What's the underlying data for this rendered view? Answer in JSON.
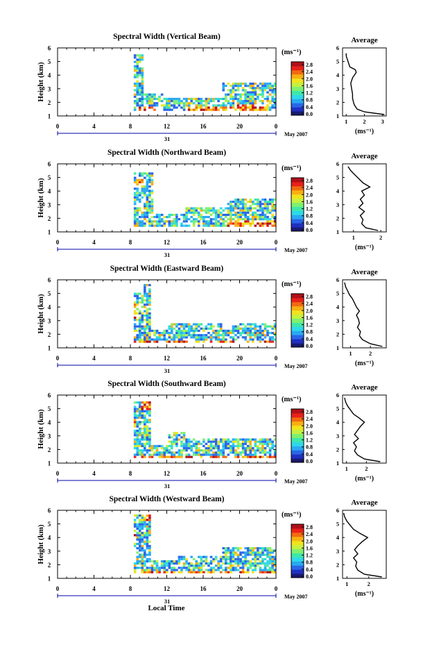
{
  "colors": {
    "text": "#000000",
    "axis": "#000000",
    "date_axis": "#0000aa",
    "background": "#ffffff"
  },
  "colormap": [
    "#1a1a6e",
    "#2030c0",
    "#2a66e8",
    "#29a9f2",
    "#2fd9e8",
    "#3fe7a8",
    "#7ff070",
    "#c6f040",
    "#f2e21e",
    "#f7b012",
    "#f26a10",
    "#e8201a",
    "#b0101a"
  ],
  "common": {
    "height_label": "Height (km)",
    "unit_label": "(ms⁻¹)",
    "average_title": "Average",
    "average_xlabel": "(ms⁻¹)",
    "date_label": "May 2007",
    "day_label": "31",
    "bottom_xlabel": "Local Time"
  },
  "chart_data": [
    {
      "type": "heatmap",
      "title": "Spectral Width (Vertical Beam)",
      "ylabel": "Height (km)",
      "ylim": [
        1,
        6
      ],
      "y_ticks": [
        1,
        2,
        3,
        4,
        5,
        6
      ],
      "x_ticks": [
        "0",
        "4",
        "8",
        "12",
        "16",
        "20",
        "0"
      ],
      "xlim": [
        0,
        24
      ],
      "colorbar": {
        "label": "(ms⁻¹)",
        "ticks": [
          "2.8",
          "2.4",
          "2.0",
          "1.6",
          "1.2",
          "0.8",
          "0.4",
          "0.0"
        ],
        "range": [
          0,
          2.8
        ]
      },
      "profile": {
        "title": "Average",
        "xlabel": "(ms⁻¹)",
        "xlim": [
          0.8,
          3.2
        ],
        "x_ticks": [
          "1",
          "2",
          "3"
        ],
        "ylim": [
          1,
          6
        ],
        "y_ticks": [
          1,
          2,
          3,
          4,
          5,
          6
        ],
        "heights": [
          1.1,
          1.3,
          1.5,
          1.8,
          2.0,
          2.3,
          2.6,
          3.0,
          3.4,
          3.8,
          4.2,
          4.4,
          4.6,
          4.8,
          5.0,
          5.2,
          5.4,
          5.6
        ],
        "values": [
          3.1,
          2.0,
          1.6,
          1.45,
          1.4,
          1.35,
          1.35,
          1.3,
          1.25,
          1.35,
          1.55,
          1.5,
          1.2,
          1.15,
          1.1,
          1.05,
          1.0,
          1.0
        ]
      },
      "cover": [
        [
          8.2,
          9.3,
          1.3,
          5.4
        ],
        [
          8.3,
          11.5,
          1.3,
          2.5
        ],
        [
          11.5,
          24,
          1.3,
          2.3
        ],
        [
          18,
          24,
          2.3,
          3.4
        ],
        [
          8.1,
          8.4,
          1.5,
          3.2
        ]
      ],
      "hot": [
        [
          14,
          19.5,
          1.1,
          1.6
        ],
        [
          8.8,
          11,
          1.3,
          1.6
        ],
        [
          19.5,
          23,
          1.2,
          1.7
        ]
      ]
    },
    {
      "type": "heatmap",
      "title": "Spectral Width (Northward Beam)",
      "ylabel": "Height (km)",
      "ylim": [
        1,
        6
      ],
      "y_ticks": [
        1,
        2,
        3,
        4,
        5,
        6
      ],
      "x_ticks": [
        "0",
        "4",
        "8",
        "12",
        "16",
        "20",
        "0"
      ],
      "xlim": [
        0,
        24
      ],
      "colorbar": {
        "label": "(ms⁻¹)",
        "ticks": [
          "2.8",
          "2.4",
          "2.0",
          "1.6",
          "1.2",
          "0.8",
          "0.4",
          "0.0"
        ],
        "range": [
          0,
          2.8
        ]
      },
      "profile": {
        "title": "Average",
        "xlabel": "(ms⁻¹)",
        "xlim": [
          0.6,
          2.2
        ],
        "x_ticks": [
          "1",
          "2"
        ],
        "ylim": [
          1,
          6
        ],
        "y_ticks": [
          1,
          2,
          3,
          4,
          5,
          6
        ],
        "heights": [
          1.1,
          1.3,
          1.6,
          1.9,
          2.2,
          2.5,
          2.8,
          3.1,
          3.4,
          3.7,
          4.0,
          4.3,
          4.6,
          4.9,
          5.2,
          5.5,
          5.8
        ],
        "values": [
          1.9,
          1.45,
          1.3,
          1.35,
          1.25,
          1.4,
          1.2,
          1.35,
          1.25,
          1.4,
          1.3,
          1.6,
          1.35,
          1.2,
          1.05,
          0.9,
          0.8
        ]
      },
      "cover": [
        [
          8.1,
          10.5,
          1.3,
          5.3
        ],
        [
          10.5,
          24,
          1.3,
          2.2
        ],
        [
          14,
          19,
          1.4,
          2.8
        ],
        [
          18.5,
          24,
          1.4,
          3.3
        ],
        [
          9,
          10,
          3.5,
          4.8
        ]
      ],
      "hot": [
        [
          18.5,
          24,
          1.3,
          1.8
        ],
        [
          8.5,
          9.5,
          4.3,
          4.8
        ]
      ]
    },
    {
      "type": "heatmap",
      "title": "Spectral Width (Eastward Beam)",
      "ylabel": "Height (km)",
      "ylim": [
        1,
        6
      ],
      "y_ticks": [
        1,
        2,
        3,
        4,
        5,
        6
      ],
      "x_ticks": [
        "0",
        "4",
        "8",
        "12",
        "16",
        "20",
        "0"
      ],
      "xlim": [
        0,
        24
      ],
      "colorbar": {
        "label": "(ms⁻¹)",
        "ticks": [
          "2.8",
          "2.4",
          "2.0",
          "1.6",
          "1.2",
          "0.8",
          "0.4",
          "0.0"
        ],
        "range": [
          0,
          2.8
        ]
      },
      "profile": {
        "title": "Average",
        "xlabel": "(ms⁻¹)",
        "xlim": [
          0.6,
          2.8
        ],
        "x_ticks": [
          "1",
          "2"
        ],
        "ylim": [
          1,
          6
        ],
        "y_ticks": [
          1,
          2,
          3,
          4,
          5,
          6
        ],
        "heights": [
          1.1,
          1.3,
          1.6,
          1.9,
          2.2,
          2.5,
          2.8,
          3.1,
          3.4,
          3.7,
          4.0,
          4.3,
          4.6,
          4.9,
          5.2,
          5.5,
          5.8
        ],
        "values": [
          2.6,
          2.0,
          1.6,
          1.45,
          1.5,
          1.35,
          1.45,
          1.4,
          1.3,
          1.45,
          1.3,
          1.2,
          1.1,
          0.95,
          0.85,
          0.75,
          0.7
        ]
      },
      "cover": [
        [
          8.1,
          10,
          1.3,
          5.0
        ],
        [
          10,
          24,
          1.3,
          2.2
        ],
        [
          12,
          18,
          2.2,
          2.8
        ],
        [
          19,
          24,
          2.2,
          2.8
        ],
        [
          9.2,
          10,
          5.0,
          5.6
        ]
      ],
      "hot": [
        [
          8.3,
          24,
          1.1,
          1.4
        ],
        [
          8.1,
          8.5,
          3.0,
          4.2
        ]
      ]
    },
    {
      "type": "heatmap",
      "title": "Spectral Width (Southward Beam)",
      "ylabel": "Height (km)",
      "ylim": [
        1,
        6
      ],
      "y_ticks": [
        1,
        2,
        3,
        4,
        5,
        6
      ],
      "x_ticks": [
        "0",
        "4",
        "8",
        "12",
        "16",
        "20",
        "0"
      ],
      "xlim": [
        0,
        24
      ],
      "colorbar": {
        "label": "(ms⁻¹)",
        "ticks": [
          "2.8",
          "2.4",
          "2.0",
          "1.6",
          "1.2",
          "0.8",
          "0.4",
          "0.0"
        ],
        "range": [
          0,
          2.8
        ]
      },
      "profile": {
        "title": "Average",
        "xlabel": "(ms⁻¹)",
        "xlim": [
          0.8,
          3.0
        ],
        "x_ticks": [
          "1",
          "2"
        ],
        "ylim": [
          1,
          6
        ],
        "y_ticks": [
          1,
          2,
          3,
          4,
          5,
          6
        ],
        "heights": [
          1.1,
          1.3,
          1.6,
          1.9,
          2.2,
          2.5,
          2.8,
          3.1,
          3.4,
          3.7,
          4.0,
          4.3,
          4.6,
          4.9,
          5.2,
          5.5,
          5.8
        ],
        "values": [
          2.7,
          1.9,
          1.55,
          1.4,
          1.5,
          1.35,
          1.6,
          1.4,
          1.55,
          1.7,
          1.9,
          1.65,
          1.35,
          1.2,
          1.05,
          0.95,
          0.9
        ]
      },
      "cover": [
        [
          8.1,
          10.2,
          1.3,
          5.4
        ],
        [
          10.2,
          24,
          1.3,
          2.3
        ],
        [
          14,
          24,
          1.6,
          2.8
        ],
        [
          12,
          14,
          1.3,
          3.2
        ]
      ],
      "hot": [
        [
          8.3,
          24,
          1.1,
          1.4
        ],
        [
          8.1,
          8.6,
          3.4,
          4.0
        ],
        [
          9,
          10,
          4.8,
          5.4
        ]
      ]
    },
    {
      "type": "heatmap",
      "title": "Spectral Width (Westward Beam)",
      "ylabel": "Height (km)",
      "ylim": [
        1,
        6
      ],
      "y_ticks": [
        1,
        2,
        3,
        4,
        5,
        6
      ],
      "x_ticks": [
        "0",
        "4",
        "8",
        "12",
        "16",
        "20",
        "0"
      ],
      "xlim": [
        0,
        24
      ],
      "colorbar": {
        "label": "(ms⁻¹)",
        "ticks": [
          "2.8",
          "2.4",
          "2.0",
          "1.6",
          "1.2",
          "0.8",
          "0.4",
          "0.0"
        ],
        "range": [
          0,
          2.8
        ]
      },
      "profile": {
        "title": "Average",
        "xlabel": "(ms⁻¹)",
        "xlim": [
          0.8,
          2.8
        ],
        "x_ticks": [
          "1",
          "2"
        ],
        "ylim": [
          1,
          6
        ],
        "y_ticks": [
          1,
          2,
          3,
          4,
          5,
          6
        ],
        "heights": [
          1.1,
          1.3,
          1.6,
          1.9,
          2.2,
          2.5,
          2.8,
          3.1,
          3.4,
          3.7,
          4.0,
          4.3,
          4.6,
          4.9,
          5.2,
          5.5,
          5.8
        ],
        "values": [
          2.6,
          1.8,
          1.5,
          1.4,
          1.45,
          1.3,
          1.5,
          1.35,
          1.5,
          1.7,
          1.95,
          1.6,
          1.3,
          1.15,
          1.0,
          0.9,
          0.85
        ]
      },
      "cover": [
        [
          8.1,
          10,
          1.3,
          5.6
        ],
        [
          10,
          24,
          1.3,
          2.2
        ],
        [
          13,
          18,
          2.0,
          2.6
        ],
        [
          18,
          24,
          1.4,
          3.2
        ]
      ],
      "hot": [
        [
          8.3,
          24,
          1.1,
          1.4
        ],
        [
          8.1,
          8.6,
          3.6,
          4.4
        ],
        [
          9.2,
          10,
          5.2,
          5.6
        ]
      ]
    }
  ]
}
